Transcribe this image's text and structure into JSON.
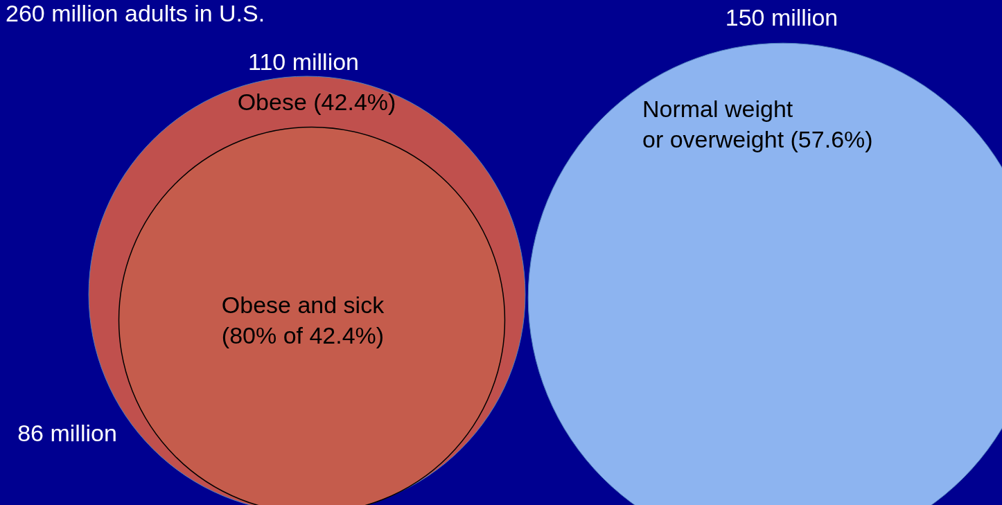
{
  "chart_data": {
    "type": "other",
    "title": "260 million adults in U.S.",
    "categories": [
      "Obese (42.4%)",
      "Normal weight\nor overweight (57.6%)",
      "Obese and sick\n(80% of 42.4%)"
    ],
    "values": [
      110,
      150,
      86
    ],
    "value_labels": [
      "110 million",
      "150 million",
      "86 million"
    ],
    "colors": [
      "#c0504d",
      "#8db4f0",
      "#c55c4c"
    ]
  }
}
